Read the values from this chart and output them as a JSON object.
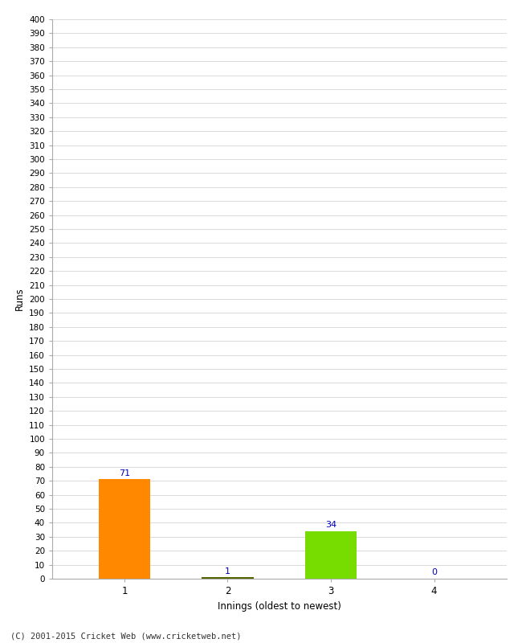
{
  "categories": [
    "1",
    "2",
    "3",
    "4"
  ],
  "values": [
    71,
    1,
    34,
    0
  ],
  "bar_colors": [
    "#ff8800",
    "#556600",
    "#77dd00",
    "#003399"
  ],
  "xlabel": "Innings (oldest to newest)",
  "ylabel": "Runs",
  "ylim": [
    0,
    400
  ],
  "ytick_step": 10,
  "label_color": "#0000bb",
  "background_color": "#ffffff",
  "grid_color": "#cccccc",
  "footer_text": "(C) 2001-2015 Cricket Web (www.cricketweb.net)"
}
